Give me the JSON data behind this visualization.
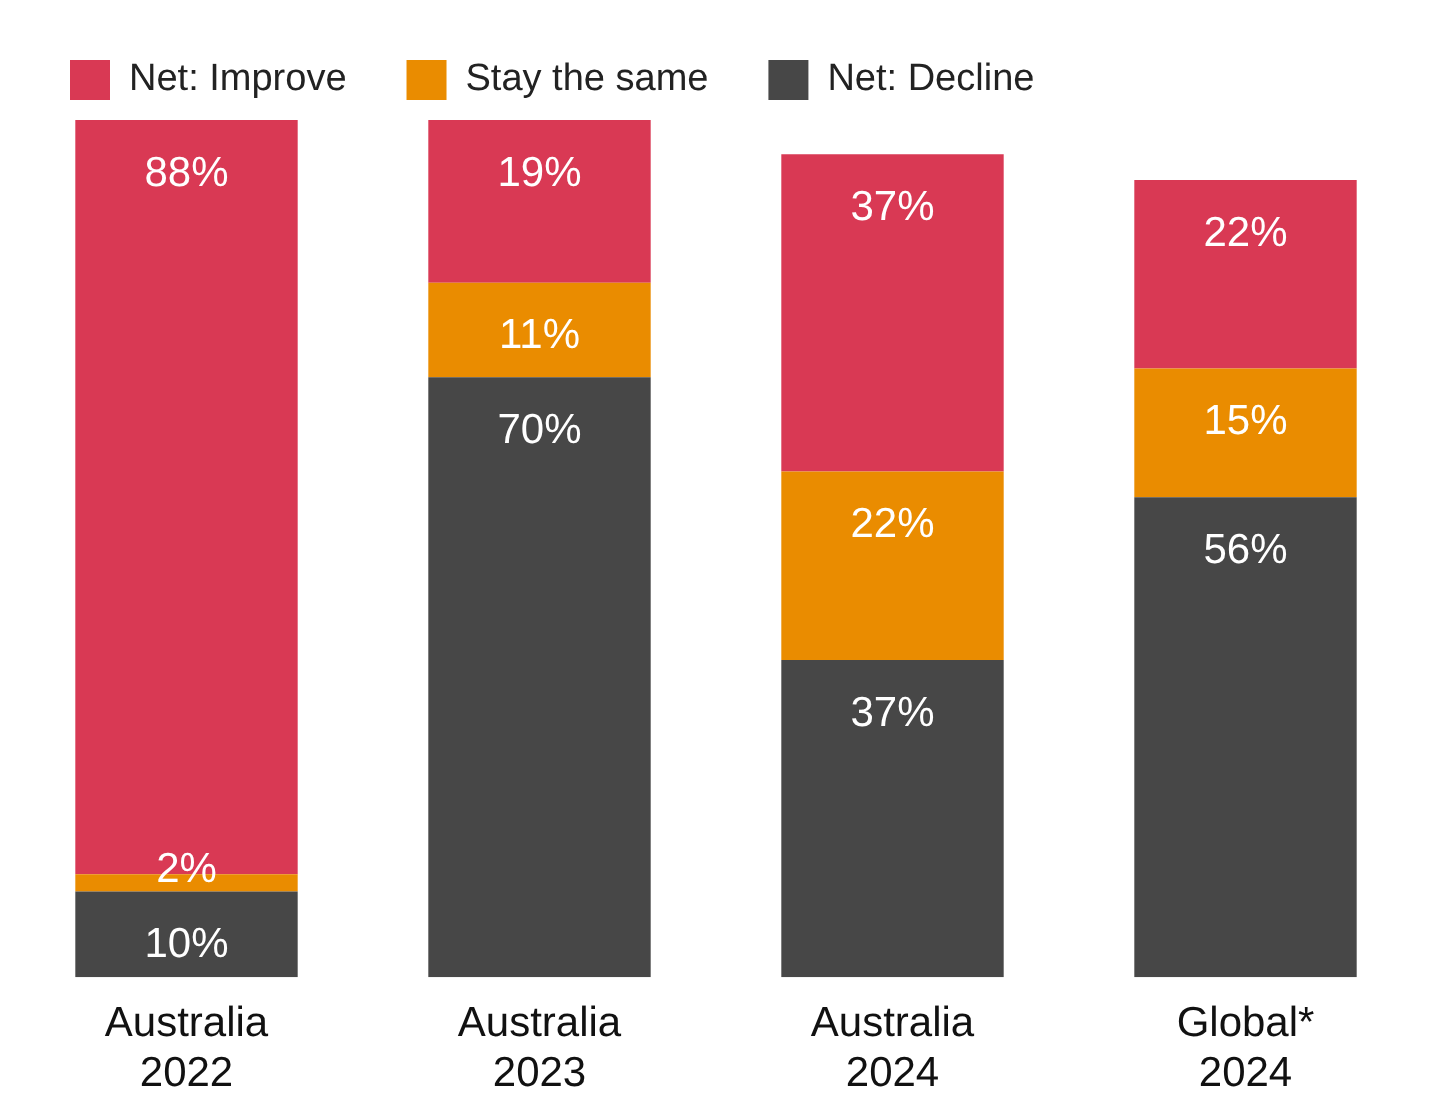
{
  "chart_data": {
    "type": "bar",
    "stacked": true,
    "legend": "top left",
    "data_labels": true,
    "categories": [
      "Australia 2022",
      "Australia 2023",
      "Australia 2024",
      "Global* 2024"
    ],
    "series": [
      {
        "name": "Net: Decline",
        "color": "#474747",
        "values": [
          10,
          70,
          37,
          56
        ],
        "value_labels": [
          "10%",
          "70%",
          "37%",
          "56%"
        ]
      },
      {
        "name": "Stay the same",
        "color": "#ea8c00",
        "values": [
          2,
          11,
          22,
          15
        ],
        "value_labels": [
          "2%",
          "11%",
          "22%",
          "15%"
        ]
      },
      {
        "name": "Net: Improve",
        "color": "#d93954",
        "values": [
          88,
          19,
          37,
          22
        ],
        "value_labels": [
          "88%",
          "19%",
          "37%",
          "22%"
        ]
      }
    ]
  }
}
